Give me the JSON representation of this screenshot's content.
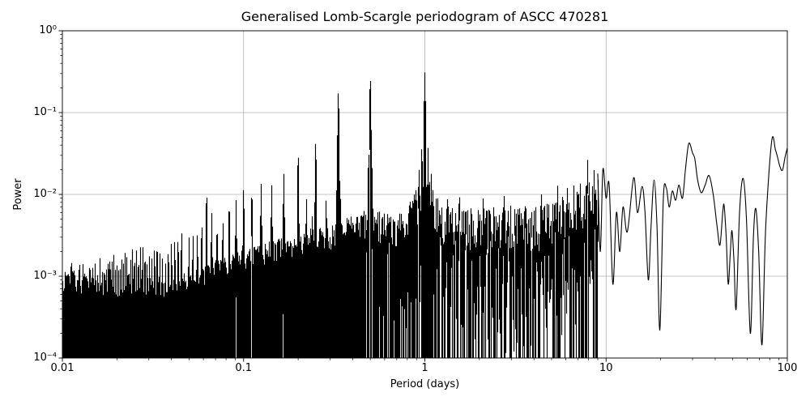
{
  "chart_data": {
    "type": "line",
    "title": "Generalised Lomb-Scargle periodogram of ASCC 470281",
    "xlabel": "Period (days)",
    "ylabel": "Power",
    "xscale": "log",
    "yscale": "log",
    "xlim": [
      0.01,
      100
    ],
    "ylim": [
      0.0001,
      1
    ],
    "grid": true,
    "grid_color": "#b0b0b0",
    "line_color": "#000000",
    "background_color": "#ffffff",
    "x_ticks": [
      {
        "value": 0.01,
        "label": "0.01"
      },
      {
        "value": 0.1,
        "label": "0.1"
      },
      {
        "value": 1,
        "label": "1"
      },
      {
        "value": 10,
        "label": "10"
      },
      {
        "value": 100,
        "label": "100"
      }
    ],
    "y_ticks": [
      {
        "value": 1,
        "label": "10⁰"
      },
      {
        "value": 0.1,
        "label": "10⁻¹"
      },
      {
        "value": 0.01,
        "label": "10⁻²"
      },
      {
        "value": 0.001,
        "label": "10⁻³"
      },
      {
        "value": 0.0001,
        "label": "10⁻⁴"
      }
    ],
    "major_peaks": [
      [
        1.0,
        0.31
      ],
      [
        0.5,
        0.27
      ],
      [
        0.3333,
        0.18
      ],
      [
        0.25,
        0.045
      ],
      [
        0.2,
        0.033
      ],
      [
        0.963,
        0.04
      ],
      [
        1.042,
        0.037
      ],
      [
        0.93,
        0.02
      ],
      [
        1.085,
        0.018
      ],
      [
        0.488,
        0.023
      ],
      [
        0.512,
        0.021
      ],
      [
        0.327,
        0.013
      ],
      [
        0.341,
        0.012
      ],
      [
        0.1667,
        0.018
      ],
      [
        0.1429,
        0.013
      ],
      [
        0.125,
        0.0135
      ],
      [
        0.1111,
        0.0115
      ],
      [
        0.1,
        0.012
      ],
      [
        0.0909,
        0.0085
      ],
      [
        0.0833,
        0.008
      ],
      [
        0.0769,
        0.0048
      ],
      [
        0.0714,
        0.0042
      ],
      [
        0.0667,
        0.006
      ],
      [
        0.0625,
        0.011
      ],
      [
        0.0588,
        0.0045
      ],
      [
        0.0556,
        0.0033
      ],
      [
        0.0526,
        0.0032
      ],
      [
        0.05,
        0.003
      ],
      [
        0.0455,
        0.0036
      ],
      [
        0.0435,
        0.003
      ],
      [
        0.0417,
        0.0028
      ],
      [
        0.04,
        0.0026
      ],
      [
        0.0222,
        0.0019
      ],
      [
        0.2222,
        0.009
      ],
      [
        0.24,
        0.006
      ],
      [
        0.2857,
        0.009
      ],
      [
        1.18,
        0.009
      ],
      [
        1.33,
        0.0095
      ],
      [
        1.55,
        0.011
      ],
      [
        2.1,
        0.009
      ],
      [
        2.75,
        0.0105
      ],
      [
        3.6,
        0.009
      ],
      [
        4.4,
        0.01
      ],
      [
        5.4,
        0.013
      ],
      [
        6.1,
        0.013
      ],
      [
        6.65,
        0.013
      ],
      [
        7.2,
        0.014
      ],
      [
        7.9,
        0.027
      ],
      [
        8.6,
        0.02
      ]
    ],
    "noise_envelope": [
      [
        0.01,
        0.00042
      ],
      [
        0.016,
        0.00052
      ],
      [
        0.025,
        0.00065
      ],
      [
        0.04,
        0.00085
      ],
      [
        0.063,
        0.00125
      ],
      [
        0.1,
        0.0019
      ],
      [
        0.16,
        0.0027
      ],
      [
        0.25,
        0.0036
      ],
      [
        0.35,
        0.0045
      ],
      [
        0.45,
        0.0055
      ],
      [
        0.5,
        0.008
      ],
      [
        0.56,
        0.0055
      ],
      [
        0.7,
        0.0055
      ],
      [
        0.85,
        0.008
      ],
      [
        0.93,
        0.013
      ],
      [
        1.0,
        0.02
      ],
      [
        1.08,
        0.012
      ],
      [
        1.2,
        0.007
      ],
      [
        1.4,
        0.0065
      ],
      [
        2.0,
        0.006
      ],
      [
        3.0,
        0.0065
      ],
      [
        4.0,
        0.0065
      ],
      [
        5.0,
        0.0075
      ],
      [
        6.3,
        0.009
      ],
      [
        8.0,
        0.013
      ],
      [
        9.0,
        0.014
      ]
    ],
    "smooth_tail": [
      [
        9.0,
        0.018
      ],
      [
        9.3,
        0.002
      ],
      [
        9.6,
        0.02
      ],
      [
        10.0,
        0.009
      ],
      [
        10.4,
        0.013
      ],
      [
        10.9,
        0.0008
      ],
      [
        11.4,
        0.006
      ],
      [
        11.9,
        0.002
      ],
      [
        12.4,
        0.007
      ],
      [
        13.1,
        0.0035
      ],
      [
        14.2,
        0.016
      ],
      [
        14.9,
        0.006
      ],
      [
        15.8,
        0.0125
      ],
      [
        16.4,
        0.006
      ],
      [
        17.1,
        0.0009
      ],
      [
        17.7,
        0.004
      ],
      [
        18.4,
        0.015
      ],
      [
        19.1,
        0.004
      ],
      [
        19.8,
        0.00022
      ],
      [
        20.7,
        0.009
      ],
      [
        21.5,
        0.012
      ],
      [
        22.3,
        0.007
      ],
      [
        23.2,
        0.011
      ],
      [
        24.2,
        0.0085
      ],
      [
        25.2,
        0.013
      ],
      [
        26.4,
        0.009
      ],
      [
        27.4,
        0.02
      ],
      [
        28.6,
        0.042
      ],
      [
        30.0,
        0.032
      ],
      [
        30.9,
        0.027
      ],
      [
        32.0,
        0.015
      ],
      [
        33.5,
        0.0105
      ],
      [
        35.2,
        0.013
      ],
      [
        37.0,
        0.017
      ],
      [
        39.0,
        0.01
      ],
      [
        41.0,
        0.004
      ],
      [
        42.5,
        0.0024
      ],
      [
        44.0,
        0.006
      ],
      [
        44.8,
        0.0073
      ],
      [
        46.0,
        0.003
      ],
      [
        47.2,
        0.0008
      ],
      [
        48.5,
        0.002
      ],
      [
        49.5,
        0.0036
      ],
      [
        50.8,
        0.0015
      ],
      [
        52.2,
        0.0004
      ],
      [
        54.5,
        0.006
      ],
      [
        57.0,
        0.0157
      ],
      [
        59.5,
        0.005
      ],
      [
        62.5,
        0.0002
      ],
      [
        65.0,
        0.003
      ],
      [
        67.0,
        0.0067
      ],
      [
        69.5,
        0.002
      ],
      [
        72.5,
        0.000145
      ],
      [
        76.0,
        0.004
      ],
      [
        82.0,
        0.045
      ],
      [
        86.0,
        0.035
      ],
      [
        88.5,
        0.028
      ],
      [
        91.0,
        0.022
      ],
      [
        94.0,
        0.0197
      ],
      [
        97.0,
        0.028
      ],
      [
        100.0,
        0.037
      ]
    ]
  }
}
